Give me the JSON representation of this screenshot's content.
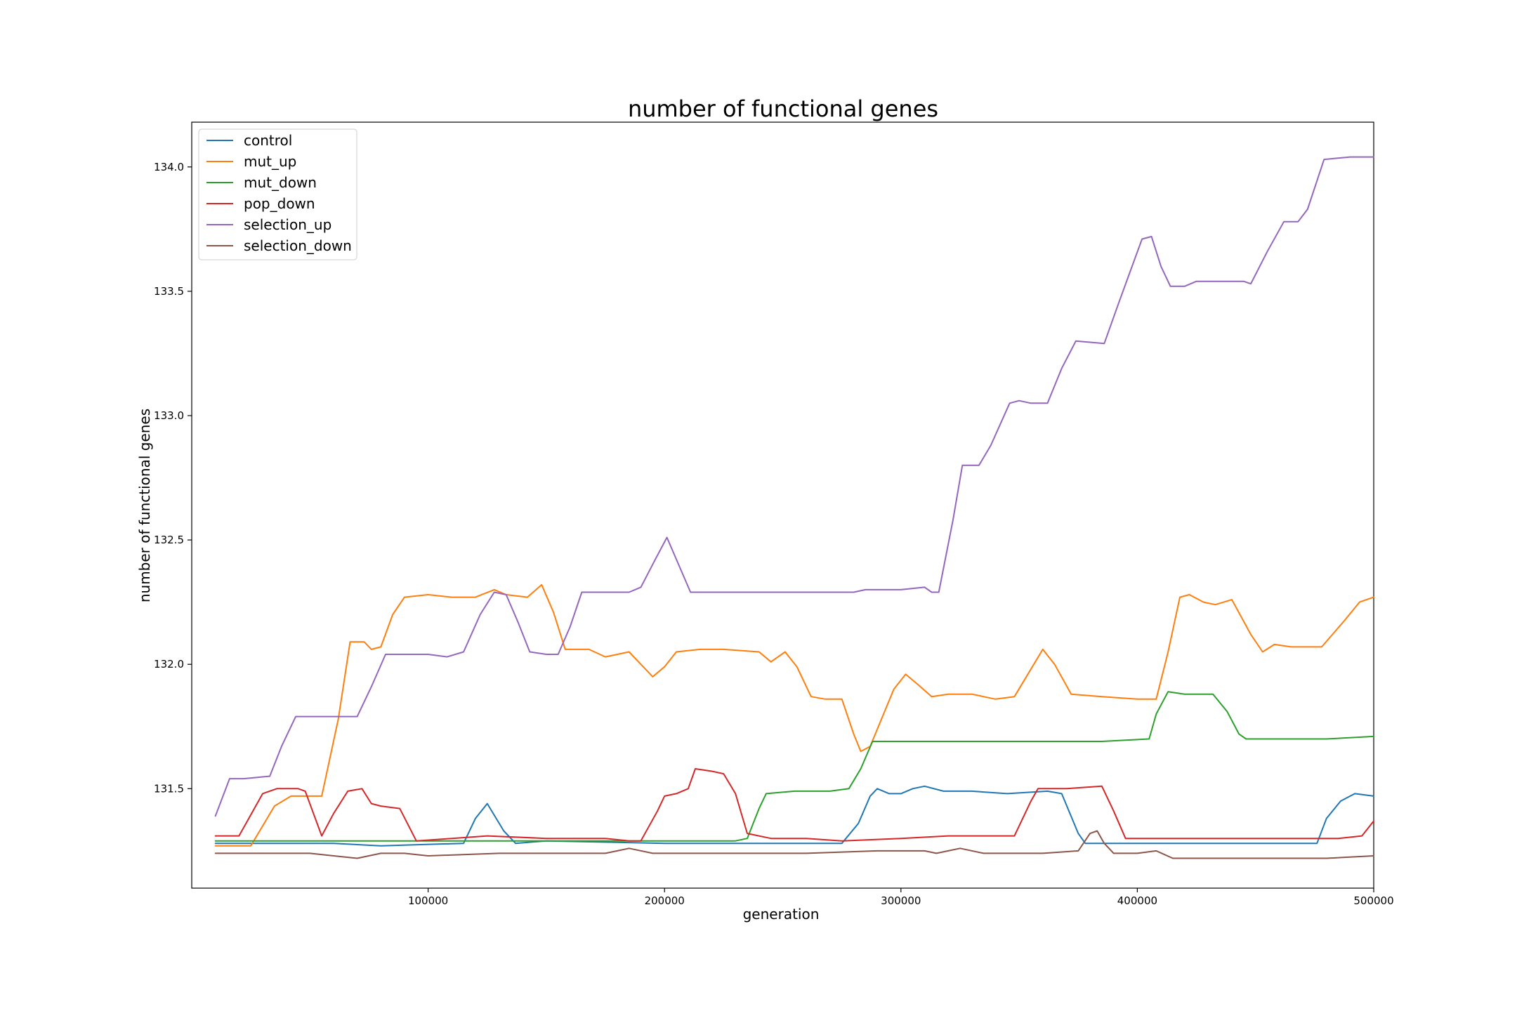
{
  "chart_data": {
    "type": "line",
    "title": "number of functional genes",
    "xlabel": "generation",
    "ylabel": "number of functional genes",
    "xlim": [
      0,
      500000
    ],
    "ylim": [
      131.1,
      134.18
    ],
    "xticks": [
      100000,
      200000,
      300000,
      400000,
      500000
    ],
    "yticks": [
      131.5,
      132.0,
      132.5,
      133.0,
      133.5,
      134.0
    ],
    "ytick_labels": [
      "131.5",
      "132.0",
      "132.5",
      "133.0",
      "133.5",
      "134.0"
    ],
    "grid": false,
    "legend_position": "upper-left",
    "series": [
      {
        "name": "control",
        "color": "#1f77b4",
        "points": [
          [
            10000,
            131.28
          ],
          [
            60000,
            131.28
          ],
          [
            80000,
            131.27
          ],
          [
            115000,
            131.28
          ],
          [
            120000,
            131.38
          ],
          [
            125000,
            131.44
          ],
          [
            132000,
            131.33
          ],
          [
            137000,
            131.28
          ],
          [
            150000,
            131.29
          ],
          [
            200000,
            131.28
          ],
          [
            240000,
            131.28
          ],
          [
            275000,
            131.28
          ],
          [
            282000,
            131.36
          ],
          [
            287000,
            131.47
          ],
          [
            290000,
            131.5
          ],
          [
            295000,
            131.48
          ],
          [
            300000,
            131.48
          ],
          [
            305000,
            131.5
          ],
          [
            310000,
            131.51
          ],
          [
            318000,
            131.49
          ],
          [
            330000,
            131.49
          ],
          [
            345000,
            131.48
          ],
          [
            362000,
            131.49
          ],
          [
            368000,
            131.48
          ],
          [
            375000,
            131.32
          ],
          [
            378000,
            131.28
          ],
          [
            420000,
            131.28
          ],
          [
            470000,
            131.28
          ],
          [
            476000,
            131.28
          ],
          [
            480000,
            131.38
          ],
          [
            486000,
            131.45
          ],
          [
            492000,
            131.48
          ],
          [
            500000,
            131.47
          ]
        ]
      },
      {
        "name": "mut_up",
        "color": "#ff7f0e",
        "points": [
          [
            10000,
            131.27
          ],
          [
            25000,
            131.27
          ],
          [
            35000,
            131.43
          ],
          [
            42000,
            131.47
          ],
          [
            55000,
            131.47
          ],
          [
            62000,
            131.78
          ],
          [
            67000,
            132.09
          ],
          [
            73000,
            132.09
          ],
          [
            76000,
            132.06
          ],
          [
            80000,
            132.07
          ],
          [
            85000,
            132.2
          ],
          [
            90000,
            132.27
          ],
          [
            100000,
            132.28
          ],
          [
            110000,
            132.27
          ],
          [
            120000,
            132.27
          ],
          [
            128000,
            132.3
          ],
          [
            133000,
            132.28
          ],
          [
            142000,
            132.27
          ],
          [
            148000,
            132.32
          ],
          [
            153000,
            132.21
          ],
          [
            158000,
            132.06
          ],
          [
            168000,
            132.06
          ],
          [
            175000,
            132.03
          ],
          [
            185000,
            132.05
          ],
          [
            192000,
            131.98
          ],
          [
            195000,
            131.95
          ],
          [
            200000,
            131.99
          ],
          [
            205000,
            132.05
          ],
          [
            215000,
            132.06
          ],
          [
            225000,
            132.06
          ],
          [
            240000,
            132.05
          ],
          [
            245000,
            132.01
          ],
          [
            251000,
            132.05
          ],
          [
            256000,
            131.99
          ],
          [
            262000,
            131.87
          ],
          [
            268000,
            131.86
          ],
          [
            275000,
            131.86
          ],
          [
            280000,
            131.72
          ],
          [
            283000,
            131.65
          ],
          [
            287000,
            131.67
          ],
          [
            297000,
            131.9
          ],
          [
            302000,
            131.96
          ],
          [
            307000,
            131.92
          ],
          [
            313000,
            131.87
          ],
          [
            320000,
            131.88
          ],
          [
            330000,
            131.88
          ],
          [
            340000,
            131.86
          ],
          [
            348000,
            131.87
          ],
          [
            360000,
            132.06
          ],
          [
            365000,
            132.0
          ],
          [
            372000,
            131.88
          ],
          [
            385000,
            131.87
          ],
          [
            400000,
            131.86
          ],
          [
            408000,
            131.86
          ],
          [
            413000,
            132.05
          ],
          [
            418000,
            132.27
          ],
          [
            422000,
            132.28
          ],
          [
            428000,
            132.25
          ],
          [
            433000,
            132.24
          ],
          [
            440000,
            132.26
          ],
          [
            448000,
            132.12
          ],
          [
            453000,
            132.05
          ],
          [
            458000,
            132.08
          ],
          [
            465000,
            132.07
          ],
          [
            478000,
            132.07
          ],
          [
            488000,
            132.18
          ],
          [
            494000,
            132.25
          ],
          [
            500000,
            132.27
          ]
        ]
      },
      {
        "name": "mut_down",
        "color": "#2ca02c",
        "points": [
          [
            10000,
            131.29
          ],
          [
            50000,
            131.29
          ],
          [
            100000,
            131.29
          ],
          [
            150000,
            131.29
          ],
          [
            200000,
            131.29
          ],
          [
            230000,
            131.29
          ],
          [
            235000,
            131.3
          ],
          [
            240000,
            131.42
          ],
          [
            243000,
            131.48
          ],
          [
            255000,
            131.49
          ],
          [
            270000,
            131.49
          ],
          [
            278000,
            131.5
          ],
          [
            283000,
            131.58
          ],
          [
            288000,
            131.69
          ],
          [
            295000,
            131.69
          ],
          [
            320000,
            131.69
          ],
          [
            345000,
            131.69
          ],
          [
            370000,
            131.69
          ],
          [
            385000,
            131.69
          ],
          [
            405000,
            131.7
          ],
          [
            408000,
            131.8
          ],
          [
            413000,
            131.89
          ],
          [
            420000,
            131.88
          ],
          [
            432000,
            131.88
          ],
          [
            438000,
            131.81
          ],
          [
            443000,
            131.72
          ],
          [
            446000,
            131.7
          ],
          [
            460000,
            131.7
          ],
          [
            480000,
            131.7
          ],
          [
            500000,
            131.71
          ]
        ]
      },
      {
        "name": "pop_down",
        "color": "#d62728",
        "points": [
          [
            10000,
            131.31
          ],
          [
            20000,
            131.31
          ],
          [
            30000,
            131.48
          ],
          [
            36000,
            131.5
          ],
          [
            45000,
            131.5
          ],
          [
            48000,
            131.49
          ],
          [
            55000,
            131.31
          ],
          [
            60000,
            131.4
          ],
          [
            66000,
            131.49
          ],
          [
            72000,
            131.5
          ],
          [
            76000,
            131.44
          ],
          [
            80000,
            131.43
          ],
          [
            88000,
            131.42
          ],
          [
            95000,
            131.29
          ],
          [
            110000,
            131.3
          ],
          [
            125000,
            131.31
          ],
          [
            150000,
            131.3
          ],
          [
            175000,
            131.3
          ],
          [
            185000,
            131.29
          ],
          [
            190000,
            131.29
          ],
          [
            197000,
            131.41
          ],
          [
            200000,
            131.47
          ],
          [
            205000,
            131.48
          ],
          [
            210000,
            131.5
          ],
          [
            213000,
            131.58
          ],
          [
            220000,
            131.57
          ],
          [
            225000,
            131.56
          ],
          [
            230000,
            131.48
          ],
          [
            235000,
            131.32
          ],
          [
            245000,
            131.3
          ],
          [
            260000,
            131.3
          ],
          [
            275000,
            131.29
          ],
          [
            300000,
            131.3
          ],
          [
            320000,
            131.31
          ],
          [
            340000,
            131.31
          ],
          [
            348000,
            131.31
          ],
          [
            355000,
            131.45
          ],
          [
            358000,
            131.5
          ],
          [
            370000,
            131.5
          ],
          [
            385000,
            131.51
          ],
          [
            390000,
            131.41
          ],
          [
            395000,
            131.3
          ],
          [
            410000,
            131.3
          ],
          [
            430000,
            131.3
          ],
          [
            460000,
            131.3
          ],
          [
            475000,
            131.3
          ],
          [
            485000,
            131.3
          ],
          [
            495000,
            131.31
          ],
          [
            500000,
            131.37
          ]
        ]
      },
      {
        "name": "selection_up",
        "color": "#9467bd",
        "points": [
          [
            10000,
            131.39
          ],
          [
            16000,
            131.54
          ],
          [
            22000,
            131.54
          ],
          [
            33000,
            131.55
          ],
          [
            38000,
            131.67
          ],
          [
            44000,
            131.79
          ],
          [
            50000,
            131.79
          ],
          [
            63000,
            131.79
          ],
          [
            70000,
            131.79
          ],
          [
            76000,
            131.91
          ],
          [
            82000,
            132.04
          ],
          [
            90000,
            132.04
          ],
          [
            100000,
            132.04
          ],
          [
            108000,
            132.03
          ],
          [
            115000,
            132.05
          ],
          [
            122000,
            132.2
          ],
          [
            128000,
            132.29
          ],
          [
            133000,
            132.28
          ],
          [
            138000,
            132.17
          ],
          [
            143000,
            132.05
          ],
          [
            150000,
            132.04
          ],
          [
            155000,
            132.04
          ],
          [
            160000,
            132.15
          ],
          [
            165000,
            132.29
          ],
          [
            175000,
            132.29
          ],
          [
            185000,
            132.29
          ],
          [
            190000,
            132.31
          ],
          [
            196000,
            132.42
          ],
          [
            201000,
            132.51
          ],
          [
            206000,
            132.4
          ],
          [
            211000,
            132.29
          ],
          [
            230000,
            132.29
          ],
          [
            260000,
            132.29
          ],
          [
            280000,
            132.29
          ],
          [
            285000,
            132.3
          ],
          [
            300000,
            132.3
          ],
          [
            310000,
            132.31
          ],
          [
            313000,
            132.29
          ],
          [
            316000,
            132.29
          ],
          [
            322000,
            132.58
          ],
          [
            326000,
            132.8
          ],
          [
            333000,
            132.8
          ],
          [
            338000,
            132.88
          ],
          [
            346000,
            133.05
          ],
          [
            350000,
            133.06
          ],
          [
            355000,
            133.05
          ],
          [
            362000,
            133.05
          ],
          [
            368000,
            133.19
          ],
          [
            374000,
            133.3
          ],
          [
            386000,
            133.29
          ],
          [
            392000,
            133.45
          ],
          [
            397000,
            133.58
          ],
          [
            402000,
            133.71
          ],
          [
            406000,
            133.72
          ],
          [
            410000,
            133.6
          ],
          [
            414000,
            133.52
          ],
          [
            420000,
            133.52
          ],
          [
            425000,
            133.54
          ],
          [
            435000,
            133.54
          ],
          [
            445000,
            133.54
          ],
          [
            448000,
            133.53
          ],
          [
            455000,
            133.66
          ],
          [
            462000,
            133.78
          ],
          [
            468000,
            133.78
          ],
          [
            472000,
            133.83
          ],
          [
            479000,
            134.03
          ],
          [
            490000,
            134.04
          ],
          [
            500000,
            134.04
          ]
        ]
      },
      {
        "name": "selection_down",
        "color": "#8c564b",
        "points": [
          [
            10000,
            131.24
          ],
          [
            50000,
            131.24
          ],
          [
            60000,
            131.23
          ],
          [
            70000,
            131.22
          ],
          [
            80000,
            131.24
          ],
          [
            90000,
            131.24
          ],
          [
            100000,
            131.23
          ],
          [
            130000,
            131.24
          ],
          [
            150000,
            131.24
          ],
          [
            175000,
            131.24
          ],
          [
            180000,
            131.25
          ],
          [
            185000,
            131.26
          ],
          [
            195000,
            131.24
          ],
          [
            220000,
            131.24
          ],
          [
            240000,
            131.24
          ],
          [
            260000,
            131.24
          ],
          [
            290000,
            131.25
          ],
          [
            310000,
            131.25
          ],
          [
            315000,
            131.24
          ],
          [
            320000,
            131.25
          ],
          [
            325000,
            131.26
          ],
          [
            335000,
            131.24
          ],
          [
            360000,
            131.24
          ],
          [
            375000,
            131.25
          ],
          [
            380000,
            131.32
          ],
          [
            383000,
            131.33
          ],
          [
            386000,
            131.28
          ],
          [
            390000,
            131.24
          ],
          [
            400000,
            131.24
          ],
          [
            408000,
            131.25
          ],
          [
            415000,
            131.22
          ],
          [
            440000,
            131.22
          ],
          [
            460000,
            131.22
          ],
          [
            480000,
            131.22
          ],
          [
            500000,
            131.23
          ]
        ]
      }
    ]
  }
}
